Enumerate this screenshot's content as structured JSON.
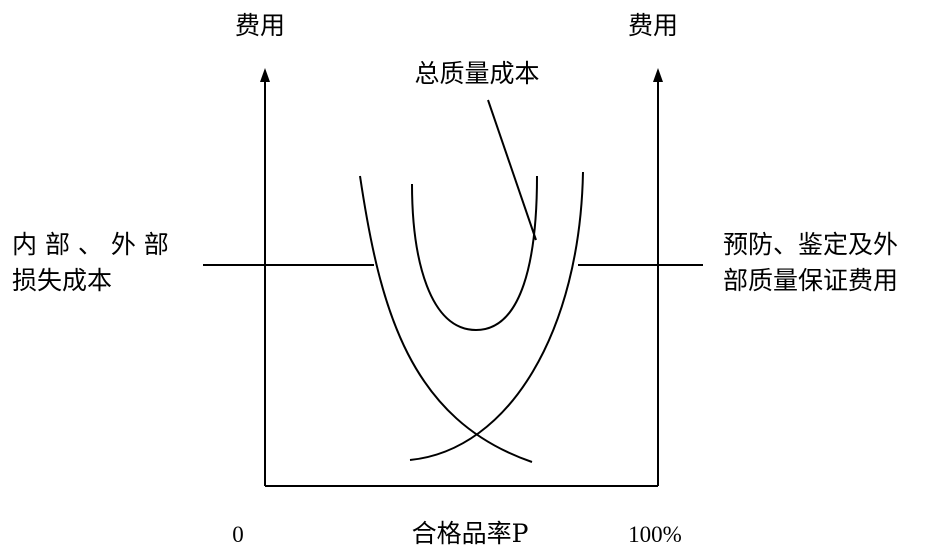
{
  "labels": {
    "left_axis_title": "费用",
    "right_axis_title": "费用",
    "total_cost": "总质量成本",
    "left_cost_line1": "内 部 、 外 部",
    "left_cost_line2": "损失成本",
    "right_cost_line1": "预防、鉴定及外",
    "right_cost_line2": "部质量保证费用",
    "x_axis_min": "0",
    "x_axis_title": "合格品率P",
    "x_axis_max": "100%"
  },
  "colors": {
    "line": "#000000",
    "background": "#ffffff"
  }
}
